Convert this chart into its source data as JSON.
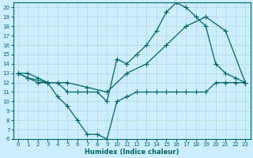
{
  "xlabel": "Humidex (Indice chaleur)",
  "bg_color": "#cceeff",
  "grid_color": "#aaddcc",
  "line_color": "#006666",
  "xlim": [
    -0.5,
    23.5
  ],
  "ylim": [
    6,
    20.5
  ],
  "xticks": [
    0,
    1,
    2,
    3,
    4,
    5,
    6,
    7,
    8,
    9,
    10,
    11,
    12,
    13,
    14,
    15,
    16,
    17,
    18,
    19,
    20,
    21,
    22,
    23
  ],
  "yticks": [
    6,
    7,
    8,
    9,
    10,
    11,
    12,
    13,
    14,
    15,
    16,
    17,
    18,
    19,
    20
  ],
  "line1_x": [
    0,
    1,
    2,
    3,
    4,
    5,
    6,
    7,
    8,
    9,
    10,
    11,
    12,
    13,
    14,
    15,
    16,
    17,
    18,
    19,
    20,
    21,
    22,
    23
  ],
  "line1_y": [
    13,
    12.5,
    12,
    12,
    10.5,
    9.5,
    8,
    6.5,
    6.5,
    6,
    10,
    10.5,
    11,
    11,
    11,
    11,
    11,
    11,
    11,
    11,
    12,
    12,
    12,
    12
  ],
  "line2_x": [
    0,
    1,
    2,
    3,
    4,
    5,
    6,
    7,
    8,
    9,
    10,
    11,
    12,
    13,
    14,
    15,
    16,
    17,
    18,
    19,
    20,
    21,
    22,
    23
  ],
  "line2_y": [
    13,
    13,
    12.5,
    12,
    12,
    11,
    11,
    11,
    11,
    10,
    14.5,
    14,
    15,
    16,
    17.5,
    19.5,
    20.5,
    20,
    19,
    18,
    14,
    13,
    12.5,
    12
  ],
  "line3_x": [
    0,
    1,
    3,
    5,
    7,
    9,
    11,
    13,
    15,
    17,
    19,
    21,
    23
  ],
  "line3_y": [
    13,
    12.5,
    12,
    12,
    11.5,
    11,
    13,
    14,
    16,
    18,
    19,
    17.5,
    12
  ]
}
